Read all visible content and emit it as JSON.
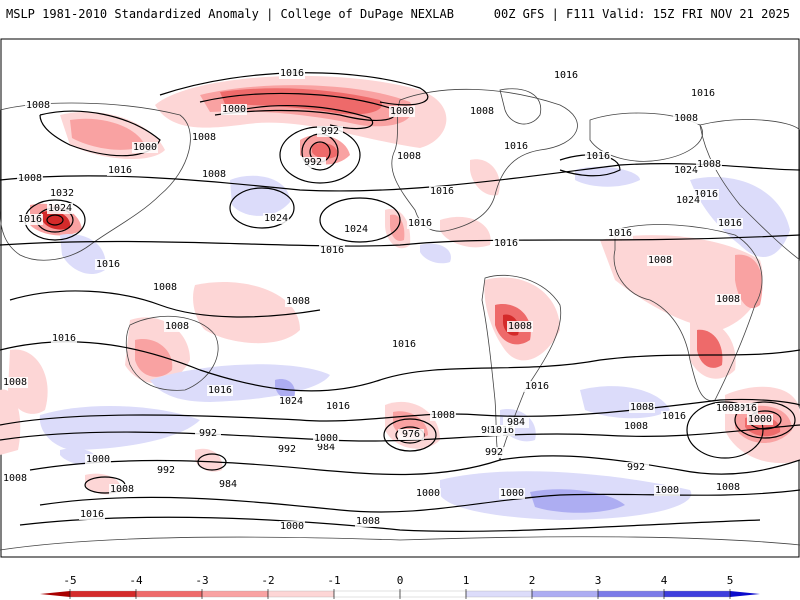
{
  "header": {
    "left": "MSLP 1981-2010 Standardized Anomaly | College of DuPage NEXLAB",
    "right": "00Z GFS | F111 Valid: 15Z FRI NOV 21 2025"
  },
  "colors": {
    "neg5": "#a80000",
    "neg4": "#d42a2a",
    "neg3": "#ee6a6a",
    "neg2": "#f9a2a2",
    "neg1": "#fdd6d6",
    "zero": "#ffffff",
    "pos1": "#dcdcfa",
    "pos2": "#adadf2",
    "pos3": "#7b7be8",
    "pos4": "#3f3fdd",
    "pos5": "#0b0bcc",
    "land": "#444444",
    "isobar": "#000000"
  },
  "isobar_labels": [
    "1008",
    "1016",
    "1008",
    "1016",
    "1008",
    "1000",
    "992",
    "1000",
    "1008",
    "1008",
    "1000",
    "992",
    "1008",
    "1016",
    "1016",
    "1024",
    "1008",
    "1008",
    "1032",
    "1024",
    "1016",
    "1024",
    "1016",
    "1016",
    "1024",
    "1016",
    "1008",
    "1016",
    "1024",
    "1016",
    "1016",
    "1016",
    "1016",
    "1016",
    "1008",
    "1008",
    "1008",
    "1008",
    "1008",
    "1016",
    "1008",
    "1016",
    "1008",
    "1016",
    "1016",
    "1024",
    "1016",
    "1008",
    "1016",
    "1008",
    "1016",
    "1000",
    "992",
    "984",
    "976",
    "1008",
    "992",
    "992",
    "984",
    "1000",
    "1008",
    "1000",
    "992",
    "984",
    "1000",
    "1008",
    "1000",
    "1016",
    "1008",
    "1000",
    "992",
    "1000",
    "1008",
    "1016",
    "1008",
    "984",
    "1016",
    "1016"
  ],
  "legend": {
    "ticks": [
      "-5",
      "-4",
      "-3",
      "-2",
      "-1",
      "0",
      "1",
      "2",
      "3",
      "4",
      "5"
    ]
  }
}
